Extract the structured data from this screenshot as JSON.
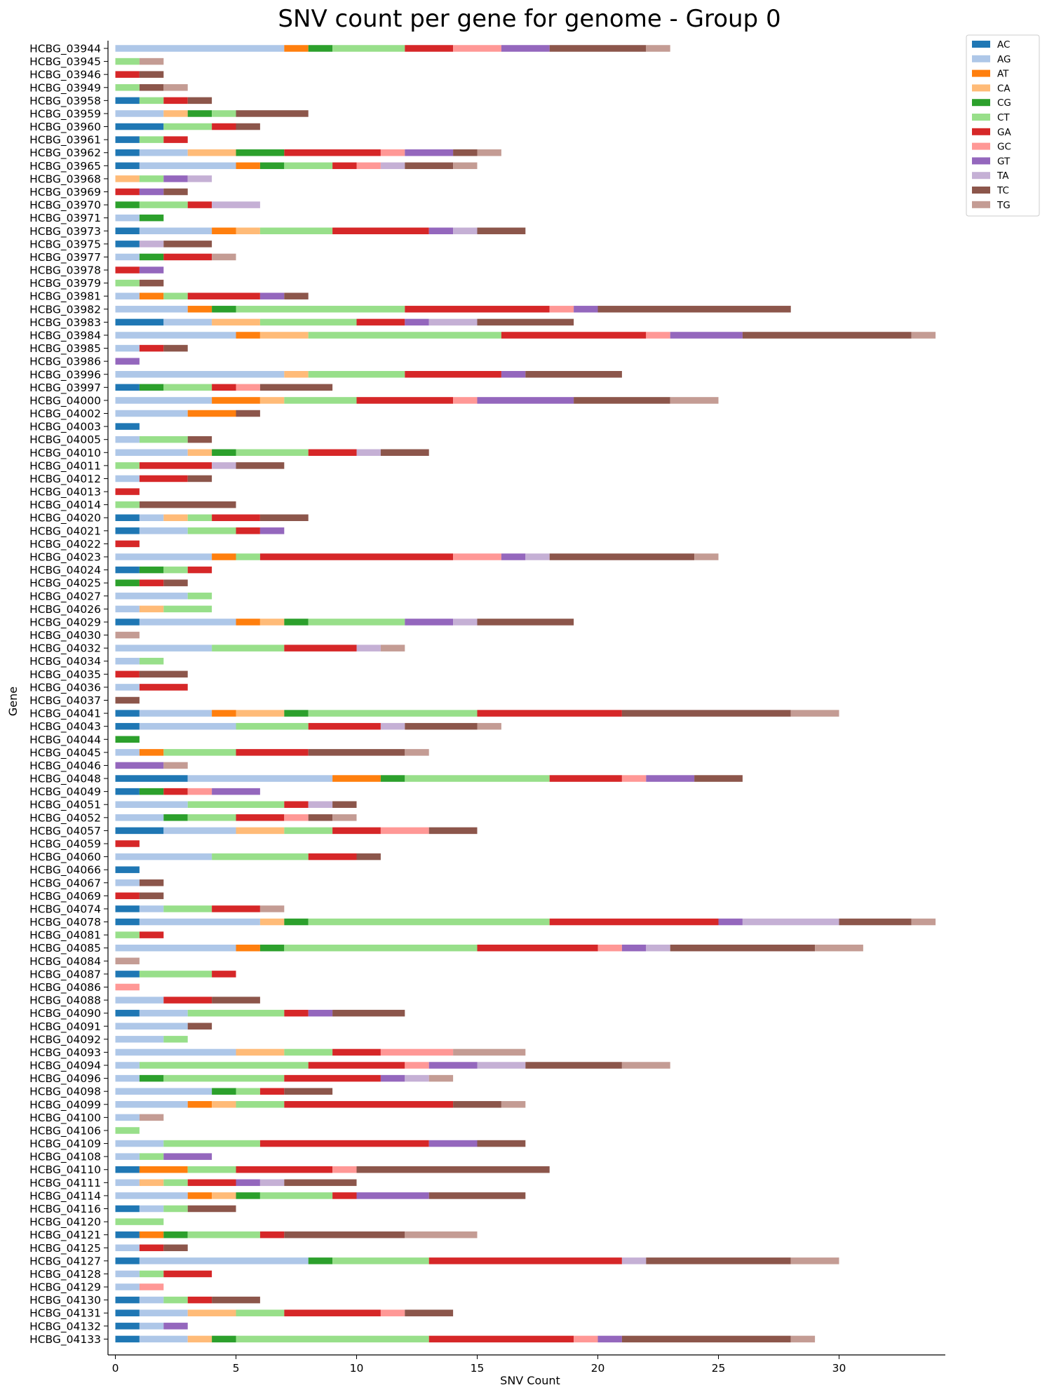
{
  "chart_data": {
    "type": "bar",
    "orientation": "horizontal",
    "stacked": true,
    "title": "SNV count per gene for genome - Group 0",
    "xlabel": "SNV Count",
    "ylabel": "Gene",
    "xlim": [
      0,
      34.5
    ],
    "xticks": [
      0,
      5,
      10,
      15,
      20,
      25,
      30
    ],
    "grid": false,
    "legend_position": "top-right outside",
    "series_order": [
      "AC",
      "AG",
      "AT",
      "CA",
      "CG",
      "CT",
      "GA",
      "GC",
      "GT",
      "TA",
      "TC",
      "TG"
    ],
    "colors": {
      "AC": "#1f77b4",
      "AG": "#aec7e8",
      "AT": "#ff7f0e",
      "CA": "#ffbb78",
      "CG": "#2ca02c",
      "CT": "#98df8a",
      "GA": "#d62728",
      "GC": "#ff9896",
      "GT": "#9467bd",
      "TA": "#c5b0d5",
      "TC": "#8c564b",
      "TG": "#c49c94"
    },
    "categories": [
      "HCBG_03944",
      "HCBG_03945",
      "HCBG_03946",
      "HCBG_03949",
      "HCBG_03958",
      "HCBG_03959",
      "HCBG_03960",
      "HCBG_03961",
      "HCBG_03962",
      "HCBG_03965",
      "HCBG_03968",
      "HCBG_03969",
      "HCBG_03970",
      "HCBG_03971",
      "HCBG_03973",
      "HCBG_03975",
      "HCBG_03977",
      "HCBG_03978",
      "HCBG_03979",
      "HCBG_03981",
      "HCBG_03982",
      "HCBG_03983",
      "HCBG_03984",
      "HCBG_03985",
      "HCBG_03986",
      "HCBG_03996",
      "HCBG_03997",
      "HCBG_04000",
      "HCBG_04002",
      "HCBG_04003",
      "HCBG_04005",
      "HCBG_04010",
      "HCBG_04011",
      "HCBG_04012",
      "HCBG_04013",
      "HCBG_04014",
      "HCBG_04020",
      "HCBG_04021",
      "HCBG_04022",
      "HCBG_04023",
      "HCBG_04024",
      "HCBG_04025",
      "HCBG_04027",
      "HCBG_04026",
      "HCBG_04029",
      "HCBG_04030",
      "HCBG_04032",
      "HCBG_04034",
      "HCBG_04035",
      "HCBG_04036",
      "HCBG_04037",
      "HCBG_04041",
      "HCBG_04043",
      "HCBG_04044",
      "HCBG_04045",
      "HCBG_04046",
      "HCBG_04048",
      "HCBG_04049",
      "HCBG_04051",
      "HCBG_04052",
      "HCBG_04057",
      "HCBG_04059",
      "HCBG_04060",
      "HCBG_04066",
      "HCBG_04067",
      "HCBG_04069",
      "HCBG_04074",
      "HCBG_04078",
      "HCBG_04081",
      "HCBG_04085",
      "HCBG_04084",
      "HCBG_04087",
      "HCBG_04086",
      "HCBG_04088",
      "HCBG_04090",
      "HCBG_04091",
      "HCBG_04092",
      "HCBG_04093",
      "HCBG_04094",
      "HCBG_04096",
      "HCBG_04098",
      "HCBG_04099",
      "HCBG_04100",
      "HCBG_04106",
      "HCBG_04109",
      "HCBG_04108",
      "HCBG_04110",
      "HCBG_04111",
      "HCBG_04114",
      "HCBG_04116",
      "HCBG_04120",
      "HCBG_04121",
      "HCBG_04125",
      "HCBG_04127",
      "HCBG_04128",
      "HCBG_04129",
      "HCBG_04130",
      "HCBG_04131",
      "HCBG_04132",
      "HCBG_04133"
    ],
    "rows": [
      {
        "AG": 7,
        "AT": 1,
        "CG": 1,
        "CT": 3,
        "GA": 2,
        "GC": 2,
        "GT": 2,
        "TC": 4,
        "TG": 1
      },
      {
        "CT": 1,
        "TG": 1
      },
      {
        "GA": 1,
        "TC": 1
      },
      {
        "CT": 1,
        "TC": 1,
        "TG": 1
      },
      {
        "AC": 1,
        "CT": 1,
        "GA": 1,
        "TC": 1
      },
      {
        "AG": 2,
        "CA": 1,
        "CG": 1,
        "CT": 1,
        "TC": 3
      },
      {
        "AC": 2,
        "CT": 2,
        "GA": 1,
        "TC": 1
      },
      {
        "AC": 1,
        "CT": 1,
        "GA": 1
      },
      {
        "AC": 1,
        "AG": 2,
        "CA": 2,
        "CG": 2,
        "GA": 4,
        "GC": 1,
        "GT": 2,
        "TC": 1,
        "TG": 1
      },
      {
        "AC": 1,
        "AG": 4,
        "AT": 1,
        "CG": 1,
        "CT": 2,
        "GA": 1,
        "GC": 1,
        "TA": 1,
        "TC": 2,
        "TG": 1
      },
      {
        "CA": 1,
        "CT": 1,
        "GT": 1,
        "TA": 1
      },
      {
        "GA": 1,
        "GT": 1,
        "TC": 1
      },
      {
        "CG": 1,
        "CT": 2,
        "GA": 1,
        "TA": 2
      },
      {
        "AG": 1,
        "CG": 1
      },
      {
        "AC": 1,
        "AG": 3,
        "AT": 1,
        "CA": 1,
        "CT": 3,
        "GA": 4,
        "GT": 1,
        "TA": 1,
        "TC": 2
      },
      {
        "AC": 1,
        "TA": 1,
        "TC": 2
      },
      {
        "AG": 1,
        "CG": 1,
        "GA": 2,
        "TG": 1
      },
      {
        "GA": 1,
        "GT": 1
      },
      {
        "CT": 1,
        "TC": 1
      },
      {
        "AG": 1,
        "AT": 1,
        "CT": 1,
        "GA": 3,
        "GT": 1,
        "TC": 1
      },
      {
        "AG": 3,
        "AT": 1,
        "CG": 1,
        "CT": 7,
        "GA": 6,
        "GC": 1,
        "GT": 1,
        "TC": 8
      },
      {
        "AC": 2,
        "AG": 2,
        "CA": 2,
        "CT": 4,
        "GA": 2,
        "GT": 1,
        "TA": 2,
        "TC": 4
      },
      {
        "AG": 5,
        "AT": 1,
        "CA": 2,
        "CT": 8,
        "GA": 6,
        "GC": 1,
        "GT": 3,
        "TC": 7,
        "TG": 1
      },
      {
        "AG": 1,
        "GA": 1,
        "TC": 1
      },
      {
        "GT": 1
      },
      {
        "AG": 7,
        "CA": 1,
        "CT": 4,
        "GA": 4,
        "GT": 1,
        "TC": 4
      },
      {
        "AC": 1,
        "CG": 1,
        "CT": 2,
        "GA": 1,
        "GC": 1,
        "TC": 3
      },
      {
        "AG": 4,
        "AT": 2,
        "CA": 1,
        "CT": 3,
        "GA": 4,
        "GC": 1,
        "GT": 4,
        "TC": 4,
        "TG": 2
      },
      {
        "AG": 3,
        "AT": 2,
        "TC": 1
      },
      {
        "AC": 1
      },
      {
        "AG": 1,
        "CT": 2,
        "TC": 1
      },
      {
        "AG": 3,
        "CA": 1,
        "CG": 1,
        "CT": 3,
        "GA": 2,
        "TA": 1,
        "TC": 2
      },
      {
        "CT": 1,
        "GA": 3,
        "TA": 1,
        "TC": 2
      },
      {
        "AG": 1,
        "GA": 2,
        "TC": 1
      },
      {
        "GA": 1
      },
      {
        "CT": 1,
        "TC": 4
      },
      {
        "AC": 1,
        "AG": 1,
        "CA": 1,
        "CT": 1,
        "GA": 2,
        "TC": 2
      },
      {
        "AC": 1,
        "AG": 2,
        "CT": 2,
        "GA": 1,
        "GT": 1
      },
      {
        "GA": 1
      },
      {
        "AG": 4,
        "AT": 1,
        "CT": 1,
        "GA": 8,
        "GC": 2,
        "GT": 1,
        "TA": 1,
        "TC": 6,
        "TG": 1
      },
      {
        "AC": 1,
        "CG": 1,
        "CT": 1,
        "GA": 1
      },
      {
        "CG": 1,
        "GA": 1,
        "TC": 1
      },
      {
        "AG": 3,
        "CT": 1
      },
      {
        "AG": 1,
        "CA": 1,
        "CT": 2
      },
      {
        "AC": 1,
        "AG": 4,
        "AT": 1,
        "CA": 1,
        "CG": 1,
        "CT": 4,
        "GT": 2,
        "TA": 1,
        "TC": 4
      },
      {
        "TG": 1
      },
      {
        "AG": 4,
        "CT": 3,
        "GA": 3,
        "TA": 1,
        "TG": 1
      },
      {
        "AG": 1,
        "CT": 1
      },
      {
        "GA": 1,
        "TC": 2
      },
      {
        "AG": 1,
        "GA": 2
      },
      {
        "TC": 1
      },
      {
        "AC": 1,
        "AG": 3,
        "AT": 1,
        "CA": 2,
        "CG": 1,
        "CT": 7,
        "GA": 6,
        "TC": 7,
        "TG": 2
      },
      {
        "AC": 1,
        "AG": 4,
        "CT": 3,
        "GA": 3,
        "TA": 1,
        "TC": 3,
        "TG": 1
      },
      {
        "CG": 1
      },
      {
        "AG": 1,
        "AT": 1,
        "CT": 3,
        "GA": 3,
        "TC": 4,
        "TG": 1
      },
      {
        "GT": 2,
        "TG": 1
      },
      {
        "AC": 3,
        "AG": 6,
        "AT": 2,
        "CG": 1,
        "CT": 6,
        "GA": 3,
        "GC": 1,
        "GT": 2,
        "TC": 2
      },
      {
        "AC": 1,
        "CG": 1,
        "GA": 1,
        "GC": 1,
        "GT": 2
      },
      {
        "AG": 3,
        "CT": 4,
        "GA": 1,
        "TA": 1,
        "TC": 1
      },
      {
        "AG": 2,
        "CG": 1,
        "CT": 2,
        "GA": 2,
        "GC": 1,
        "TC": 1,
        "TG": 1
      },
      {
        "AC": 2,
        "AG": 3,
        "CA": 2,
        "CT": 2,
        "GA": 2,
        "GC": 2,
        "TC": 2
      },
      {
        "GA": 1
      },
      {
        "AG": 4,
        "CT": 4,
        "GA": 2,
        "TC": 1
      },
      {
        "AC": 1
      },
      {
        "AG": 1,
        "TC": 1
      },
      {
        "GA": 1,
        "TC": 1
      },
      {
        "AC": 1,
        "AG": 1,
        "CT": 2,
        "GA": 2,
        "TG": 1
      },
      {
        "AC": 1,
        "AG": 5,
        "CA": 1,
        "CG": 1,
        "CT": 10,
        "GA": 7,
        "GT": 1,
        "TA": 4,
        "TC": 3,
        "TG": 1
      },
      {
        "CT": 1,
        "GA": 1
      },
      {
        "AG": 5,
        "AT": 1,
        "CG": 1,
        "CT": 8,
        "GA": 5,
        "GC": 1,
        "GT": 1,
        "TA": 1,
        "TC": 6,
        "TG": 2
      },
      {
        "TG": 1
      },
      {
        "AC": 1,
        "CT": 3,
        "GA": 1
      },
      {
        "GC": 1
      },
      {
        "AG": 2,
        "GA": 2,
        "TC": 2
      },
      {
        "AC": 1,
        "AG": 2,
        "CT": 4,
        "GA": 1,
        "GT": 1,
        "TC": 3
      },
      {
        "AG": 3,
        "TC": 1
      },
      {
        "AG": 2,
        "CT": 1
      },
      {
        "AG": 5,
        "CA": 2,
        "CT": 2,
        "GA": 2,
        "GC": 3,
        "TG": 3
      },
      {
        "AG": 1,
        "CT": 7,
        "GA": 4,
        "GC": 1,
        "GT": 2,
        "TA": 2,
        "TC": 4,
        "TG": 2
      },
      {
        "AG": 1,
        "CG": 1,
        "CT": 5,
        "GA": 4,
        "GT": 1,
        "TA": 1,
        "TG": 1
      },
      {
        "AG": 4,
        "CG": 1,
        "CT": 1,
        "GA": 1,
        "TC": 2
      },
      {
        "AG": 3,
        "AT": 1,
        "CA": 1,
        "CT": 2,
        "GA": 7,
        "TC": 2,
        "TG": 1
      },
      {
        "AG": 1,
        "TG": 1
      },
      {
        "CT": 1
      },
      {
        "AG": 2,
        "CT": 4,
        "GA": 7,
        "GT": 2,
        "TC": 2
      },
      {
        "AG": 1,
        "CT": 1,
        "GT": 2
      },
      {
        "AC": 1,
        "AT": 2,
        "CT": 2,
        "GA": 4,
        "GC": 1,
        "TC": 8
      },
      {
        "AG": 1,
        "CA": 1,
        "CT": 1,
        "GA": 2,
        "GT": 1,
        "TA": 1,
        "TC": 3
      },
      {
        "AG": 3,
        "AT": 1,
        "CA": 1,
        "CG": 1,
        "CT": 3,
        "GA": 1,
        "GT": 3,
        "TC": 4
      },
      {
        "AC": 1,
        "AG": 1,
        "CT": 1,
        "TC": 2
      },
      {
        "CT": 2
      },
      {
        "AC": 1,
        "AT": 1,
        "CG": 1,
        "CT": 3,
        "GA": 1,
        "TC": 5,
        "TG": 3
      },
      {
        "AG": 1,
        "GA": 1,
        "TC": 1
      },
      {
        "AC": 1,
        "AG": 7,
        "CG": 1,
        "CT": 4,
        "GA": 8,
        "TA": 1,
        "TC": 6,
        "TG": 2
      },
      {
        "AG": 1,
        "CT": 1,
        "GA": 2
      },
      {
        "AG": 1,
        "GC": 1
      },
      {
        "AC": 1,
        "AG": 1,
        "CT": 1,
        "GA": 1,
        "TC": 2
      },
      {
        "AC": 1,
        "AG": 2,
        "CA": 2,
        "CT": 2,
        "GA": 4,
        "GC": 1,
        "TC": 2
      },
      {
        "AC": 1,
        "AG": 1,
        "GT": 1
      },
      {
        "AC": 1,
        "AG": 2,
        "CA": 1,
        "CG": 1,
        "CT": 8,
        "GA": 6,
        "GC": 1,
        "GT": 1,
        "TC": 7,
        "TG": 1
      }
    ]
  }
}
